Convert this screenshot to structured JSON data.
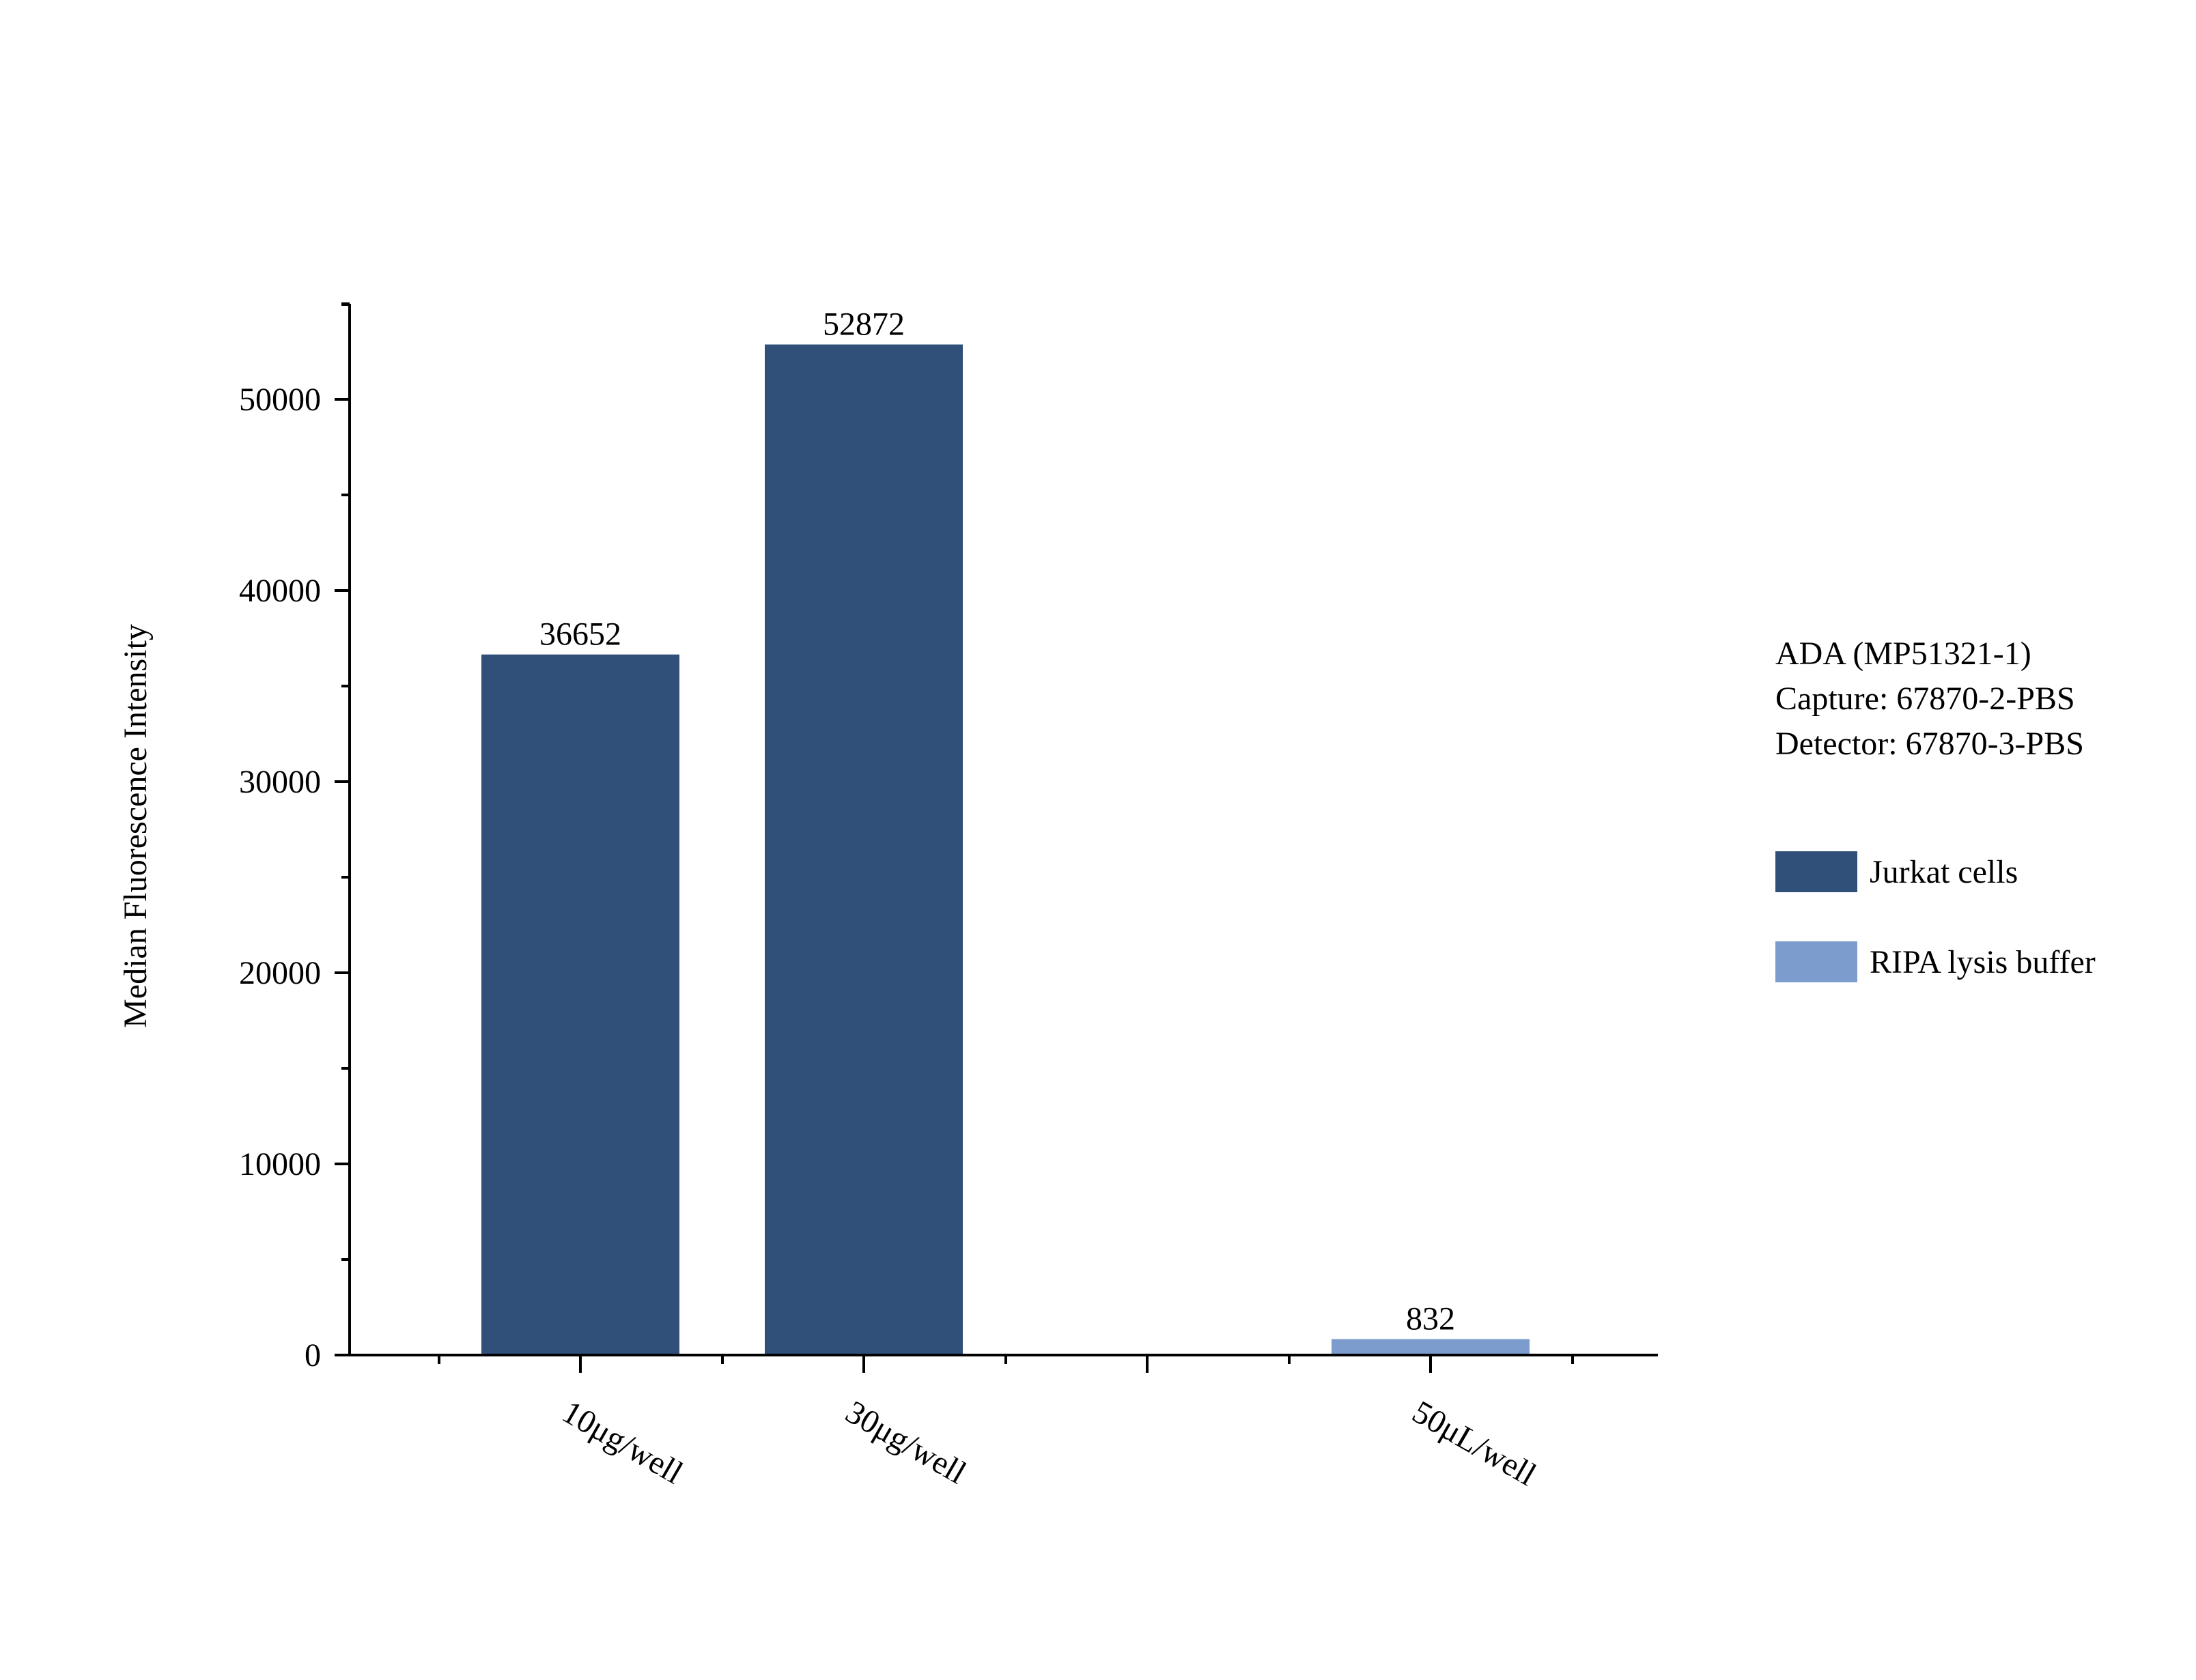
{
  "chart_data": {
    "type": "bar",
    "categories": [
      "10μg/well",
      "30μg/well",
      "50μL/well"
    ],
    "series": [
      {
        "name": "Jurkat cells",
        "color": "#30507a",
        "values": [
          36652,
          52872,
          null
        ]
      },
      {
        "name": "RIPA lysis buffer",
        "color": "#7b9ccc",
        "values": [
          null,
          null,
          832
        ]
      }
    ],
    "data_labels": [
      "36652",
      "52872",
      "832"
    ],
    "ylabel": "Median Fluorescence Intensity",
    "xlabel": "",
    "ylim": [
      0,
      55000
    ],
    "yticks": [
      0,
      10000,
      20000,
      30000,
      40000,
      50000
    ],
    "ytick_labels": [
      "0",
      "10000",
      "20000",
      "30000",
      "40000",
      "50000"
    ],
    "grid": false,
    "legend_position": "right",
    "annotations": [
      "ADA (MP51321-1)",
      "Capture: 67870-2-PBS",
      "Detector: 67870-3-PBS"
    ]
  }
}
